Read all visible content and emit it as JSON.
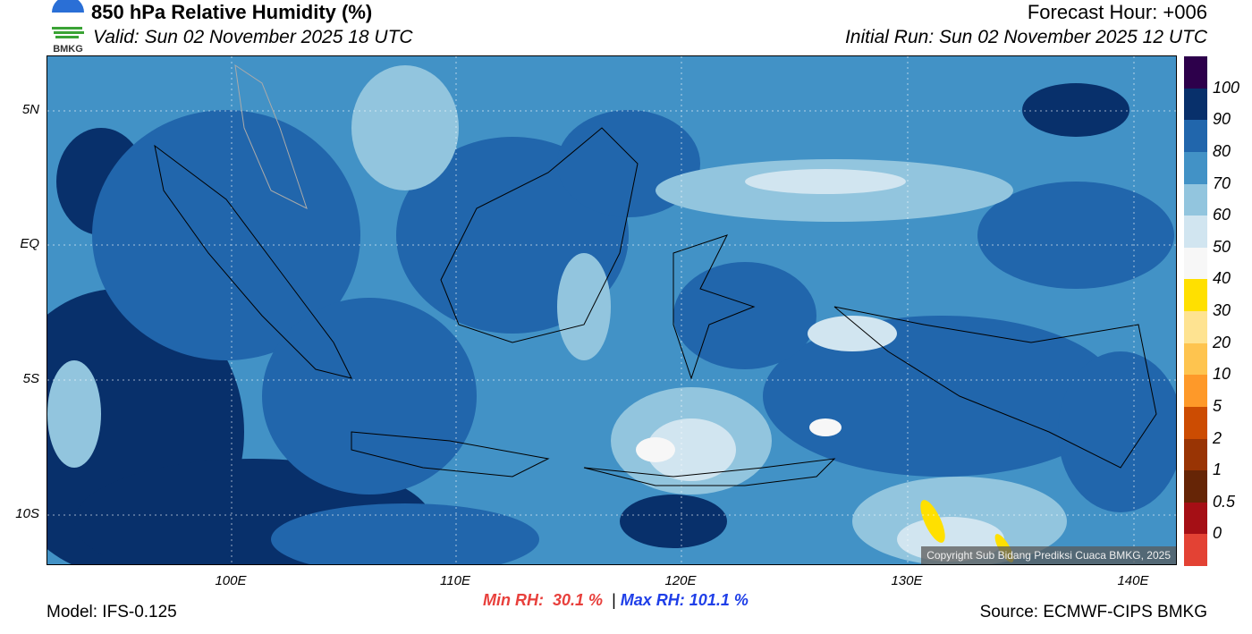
{
  "header": {
    "title": "850 hPa Relative Humidity (%)",
    "valid": "Valid: Sun 02 November 2025 18 UTC",
    "forecast_hour": "Forecast Hour: +006",
    "initial_run": "Initial Run: Sun 02 November 2025 12 UTC",
    "logo_text": "BMKG"
  },
  "map": {
    "lat_labels": [
      "5N",
      "EQ",
      "5S",
      "10S"
    ],
    "lon_labels": [
      "100E",
      "110E",
      "120E",
      "130E",
      "140E"
    ],
    "copyright": "Copyright Sub Bidang Prediksi Cuaca BMKG, 2025"
  },
  "colorbar": {
    "colors": [
      "#2d004b",
      "#08306b",
      "#2166ac",
      "#4292c6",
      "#92c5de",
      "#d1e5f0",
      "#f7f7f7",
      "#ffe000",
      "#fee391",
      "#fec44f",
      "#fe9929",
      "#cc4c02",
      "#993404",
      "#662506",
      "#a50f15",
      "#e34234"
    ],
    "labels": [
      "100",
      "90",
      "80",
      "70",
      "60",
      "50",
      "40",
      "30",
      "20",
      "10",
      "5",
      "2",
      "1",
      "0.5",
      "0"
    ]
  },
  "footer": {
    "model": "Model: IFS-0.125",
    "source": "Source: ECMWF-CIPS BMKG",
    "min_label": "Min RH:",
    "min_value": "30.1 %",
    "sep": "|",
    "max_label": "Max RH:",
    "max_value": "101.1 %",
    "min_color": "#e8403c",
    "max_color": "#1f3fe8"
  }
}
